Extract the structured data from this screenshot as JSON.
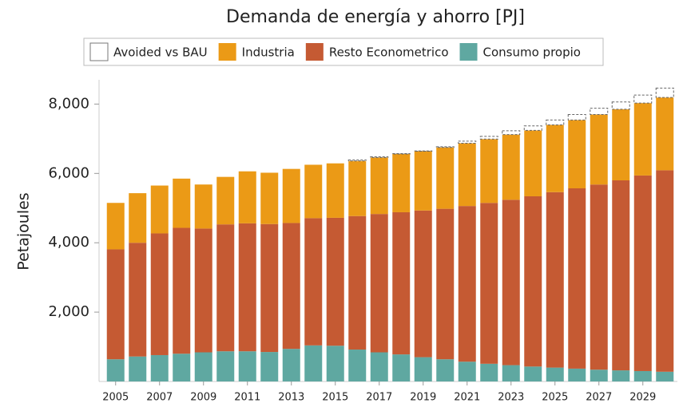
{
  "chart_data": {
    "type": "stacked_bar",
    "title": "Demanda de energía y ahorro [PJ]",
    "y_label": "Petajoules",
    "categories": [
      "2005",
      null,
      "2007",
      null,
      "2009",
      null,
      "2011",
      null,
      "2013",
      null,
      "2015",
      null,
      "2017",
      null,
      "2019",
      null,
      "2021",
      null,
      "2023",
      null,
      "2025",
      null,
      "2027",
      null,
      "2029",
      null
    ],
    "series": [
      {
        "name": "Consumo propio",
        "color": "#5fa8a1",
        "values": [
          640,
          720,
          760,
          800,
          840,
          870,
          870,
          850,
          940,
          1040,
          1030,
          920,
          840,
          780,
          700,
          640,
          570,
          510,
          470,
          430,
          400,
          370,
          340,
          320,
          300,
          280
        ]
      },
      {
        "name": "Resto Econometrico",
        "color": "#c55a33",
        "values": [
          3170,
          3280,
          3510,
          3630,
          3570,
          3660,
          3690,
          3690,
          3630,
          3670,
          3690,
          3850,
          3990,
          4100,
          4230,
          4340,
          4490,
          4640,
          4770,
          4910,
          5060,
          5200,
          5340,
          5480,
          5640,
          5810
        ]
      },
      {
        "name": "Industria",
        "color": "#eb9a16",
        "values": [
          1340,
          1430,
          1380,
          1420,
          1270,
          1370,
          1500,
          1480,
          1560,
          1540,
          1570,
          1590,
          1630,
          1680,
          1710,
          1770,
          1810,
          1840,
          1880,
          1900,
          1940,
          1970,
          2020,
          2050,
          2090,
          2100
        ]
      },
      {
        "name": "Avoided vs BAU",
        "color": "#ffffff",
        "dashed": true,
        "values": [
          0,
          0,
          0,
          0,
          0,
          0,
          0,
          0,
          0,
          0,
          0,
          30,
          20,
          10,
          10,
          20,
          60,
          80,
          110,
          130,
          140,
          160,
          180,
          210,
          230,
          270
        ]
      }
    ],
    "legend_order": [
      3,
      2,
      1,
      0
    ],
    "ylim": [
      0,
      8700
    ],
    "yticks": [
      {
        "value": 2000,
        "label": "2,000"
      },
      {
        "value": 4000,
        "label": "4,000"
      },
      {
        "value": 6000,
        "label": "6,000"
      },
      {
        "value": 8000,
        "label": "8,000"
      }
    ],
    "grid": false
  }
}
